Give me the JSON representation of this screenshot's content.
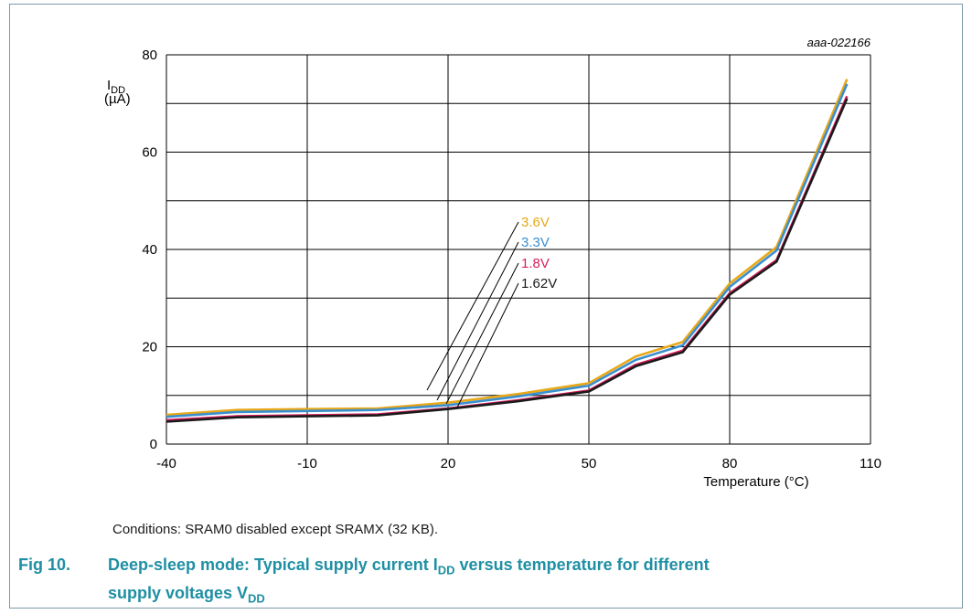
{
  "chart_data": {
    "type": "line",
    "reference_id": "aaa-022166",
    "ylabel_main": "I",
    "ylabel_sub": "DD",
    "ylabel_unit": "(µA)",
    "xlabel": "Temperature (°C)",
    "xlim": [
      -40,
      110
    ],
    "ylim": [
      0,
      80
    ],
    "x_ticks": [
      "-40",
      "-10",
      "20",
      "50",
      "80",
      "110"
    ],
    "y_ticks": [
      "0",
      "20",
      "40",
      "60",
      "80"
    ],
    "grid": true,
    "series": [
      {
        "name": "3.6V",
        "color": "#e8a818",
        "x": [
          -40,
          -25,
          -10,
          5,
          20,
          35,
          50,
          60,
          70,
          80,
          90,
          105
        ],
        "y": [
          6.0,
          7.0,
          7.2,
          7.3,
          8.5,
          10.3,
          12.5,
          18.0,
          21.0,
          33.0,
          40.5,
          75.0
        ]
      },
      {
        "name": "3.3V",
        "color": "#3a8fd0",
        "x": [
          -40,
          -25,
          -10,
          5,
          20,
          35,
          50,
          60,
          70,
          80,
          90,
          105
        ],
        "y": [
          5.6,
          6.6,
          6.8,
          7.0,
          8.0,
          9.8,
          12.0,
          17.3,
          20.3,
          32.3,
          39.8,
          74.0
        ]
      },
      {
        "name": "1.8V",
        "color": "#d61e5c",
        "x": [
          -40,
          -25,
          -10,
          5,
          20,
          35,
          50,
          60,
          70,
          80,
          90,
          105
        ],
        "y": [
          4.9,
          5.7,
          5.9,
          6.1,
          7.3,
          9.0,
          11.0,
          16.3,
          19.2,
          31.0,
          37.8,
          71.5
        ]
      },
      {
        "name": "1.62V",
        "color": "#1a1a1a",
        "x": [
          -40,
          -25,
          -10,
          5,
          20,
          35,
          50,
          60,
          70,
          80,
          90,
          105
        ],
        "y": [
          4.6,
          5.5,
          5.7,
          5.9,
          7.2,
          8.8,
          10.8,
          16.0,
          18.9,
          30.7,
          37.5,
          71.0
        ]
      }
    ]
  },
  "conditions": "Conditions: SRAM0 disabled except SRAMX (32 KB).",
  "caption": {
    "number": "Fig 10.",
    "part1": "Deep-sleep mode: Typical supply current I",
    "sub1": "DD",
    "part2": " versus temperature for different",
    "part3": "supply voltages V",
    "sub2": "DD"
  }
}
